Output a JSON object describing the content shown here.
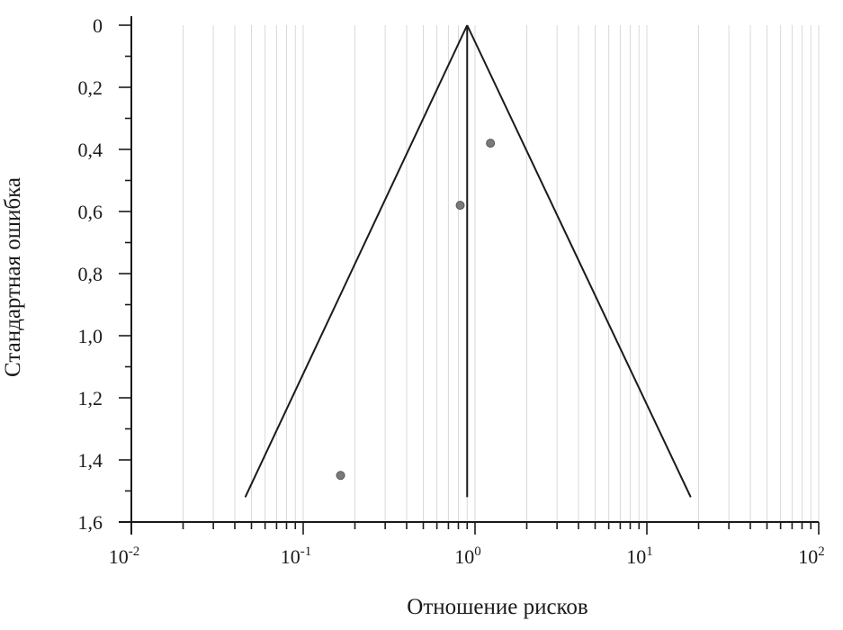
{
  "chart_data": {
    "type": "scatter",
    "title": "",
    "xlabel": "Отношение рисков",
    "ylabel": "Стандартная ошибка",
    "xscale": "log",
    "xlim": [
      0.01,
      100
    ],
    "ylim": [
      0,
      1.6
    ],
    "y_inverted": true,
    "grid": true,
    "x_ticks": [
      {
        "base": "10",
        "exp": "-2",
        "value": 0.01
      },
      {
        "base": "10",
        "exp": "-1",
        "value": 0.1
      },
      {
        "base": "10",
        "exp": "0",
        "value": 1
      },
      {
        "base": "10",
        "exp": "1",
        "value": 10
      },
      {
        "base": "10",
        "exp": "2",
        "value": 100
      }
    ],
    "y_ticks": [
      {
        "label": "0",
        "value": 0
      },
      {
        "label": "0,2",
        "value": 0.2
      },
      {
        "label": "0,4",
        "value": 0.4
      },
      {
        "label": "0,6",
        "value": 0.6
      },
      {
        "label": "0,8",
        "value": 0.8
      },
      {
        "label": "1,0",
        "value": 1.0
      },
      {
        "label": "1,2",
        "value": 1.2
      },
      {
        "label": "1,4",
        "value": 1.4
      },
      {
        "label": "1,6",
        "value": 1.6
      }
    ],
    "points": [
      {
        "x": 1.23,
        "y": 0.38
      },
      {
        "x": 0.82,
        "y": 0.58
      },
      {
        "x": 0.165,
        "y": 1.45
      }
    ],
    "pooled_estimate": 0.9,
    "funnel": {
      "apex": [
        0.9,
        0
      ],
      "left_base": [
        0.046,
        1.52
      ],
      "right_base": [
        18,
        1.52
      ]
    }
  }
}
